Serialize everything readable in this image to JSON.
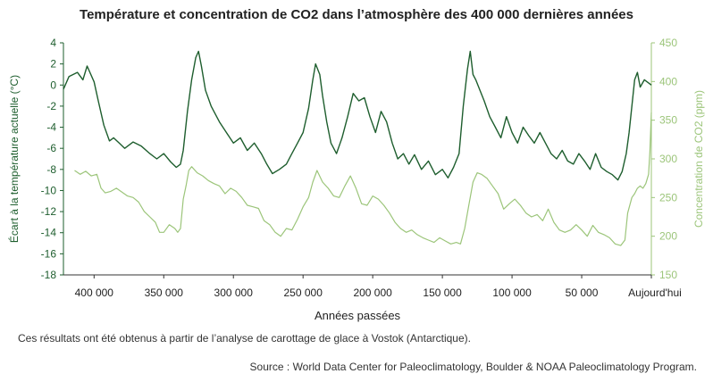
{
  "chart_data": {
    "type": "line",
    "title": "Température et concentration de CO2 dans l’atmosphère des 400 000 dernières années",
    "xlabel": "Années passées",
    "ylabel_left": "Écart à la température actuelle (°C)",
    "ylabel_right": "Concentration de CO2 (ppm)",
    "xlim": [
      422000,
      0
    ],
    "ylim_left": [
      -18,
      4
    ],
    "ylim_right": [
      150,
      450
    ],
    "x_ticks": [
      {
        "value": 400000,
        "label": "400 000"
      },
      {
        "value": 350000,
        "label": "350 000"
      },
      {
        "value": 300000,
        "label": "300 000"
      },
      {
        "value": 250000,
        "label": "250 000"
      },
      {
        "value": 200000,
        "label": "200 000"
      },
      {
        "value": 150000,
        "label": "150 000"
      },
      {
        "value": 100000,
        "label": "100 000"
      },
      {
        "value": 50000,
        "label": "50 000"
      },
      {
        "value": 0,
        "label": "Aujourd'hui"
      }
    ],
    "y_left_ticks": [
      4,
      2,
      0,
      -2,
      -4,
      -6,
      -8,
      -10,
      -12,
      -14,
      -16,
      -18
    ],
    "y_right_ticks": [
      450,
      400,
      350,
      300,
      250,
      200,
      150
    ],
    "series": [
      {
        "name": "Température",
        "axis": "left",
        "color": "#1e5e2e",
        "x": [
          422000,
          418000,
          412000,
          408000,
          405000,
          400000,
          397000,
          393000,
          389000,
          386000,
          382000,
          378000,
          372000,
          366000,
          360000,
          355000,
          350000,
          345000,
          341000,
          338000,
          336000,
          333000,
          330000,
          327000,
          325000,
          323000,
          320000,
          316000,
          310000,
          305000,
          300000,
          295000,
          290000,
          285000,
          280000,
          276000,
          272000,
          267000,
          262000,
          258000,
          254000,
          250000,
          246000,
          243000,
          241000,
          238000,
          236000,
          233000,
          230000,
          226000,
          222000,
          218000,
          214000,
          210000,
          206000,
          202000,
          198000,
          194000,
          190000,
          186000,
          182000,
          178000,
          174000,
          170000,
          165000,
          160000,
          155000,
          150000,
          146000,
          142000,
          138000,
          135000,
          132000,
          130000,
          128000,
          126000,
          123000,
          120000,
          116000,
          112000,
          108000,
          104000,
          100000,
          96000,
          92000,
          88000,
          84000,
          80000,
          76000,
          72000,
          68000,
          64000,
          60000,
          56000,
          52000,
          48000,
          44000,
          40000,
          36000,
          32000,
          28000,
          24000,
          21000,
          18000,
          16000,
          14000,
          12000,
          10000,
          8000,
          5000,
          2000,
          0
        ],
        "values": [
          -0.4,
          0.8,
          1.2,
          0.5,
          1.8,
          0.3,
          -1.5,
          -3.8,
          -5.3,
          -5.0,
          -5.5,
          -6.0,
          -5.4,
          -5.8,
          -6.5,
          -7.0,
          -6.5,
          -7.3,
          -7.8,
          -7.5,
          -6.2,
          -2.5,
          0.5,
          2.6,
          3.2,
          1.8,
          -0.5,
          -2.0,
          -3.5,
          -4.5,
          -5.5,
          -5.0,
          -6.2,
          -5.5,
          -6.5,
          -7.5,
          -8.4,
          -8.0,
          -7.5,
          -6.5,
          -5.5,
          -4.5,
          -2.2,
          0.5,
          2.0,
          1.0,
          -1.0,
          -3.5,
          -5.5,
          -6.5,
          -5.0,
          -3.0,
          -0.8,
          -1.5,
          -1.2,
          -3.0,
          -4.5,
          -2.5,
          -3.5,
          -5.5,
          -7.0,
          -6.5,
          -7.5,
          -6.6,
          -8.0,
          -7.2,
          -8.5,
          -8.0,
          -8.8,
          -7.8,
          -6.5,
          -2.0,
          1.5,
          3.2,
          1.0,
          0.5,
          -0.5,
          -1.5,
          -3.0,
          -4.0,
          -5.0,
          -3.0,
          -4.5,
          -5.5,
          -4.0,
          -4.8,
          -5.5,
          -4.5,
          -5.5,
          -6.5,
          -7.0,
          -6.2,
          -7.2,
          -7.5,
          -6.5,
          -7.2,
          -8.0,
          -6.5,
          -7.8,
          -8.2,
          -8.5,
          -9.0,
          -8.2,
          -6.5,
          -4.5,
          -2.0,
          0.5,
          1.2,
          -0.2,
          0.5,
          0.2,
          0.0
        ]
      },
      {
        "name": "CO2",
        "axis": "right",
        "color": "#9cc57a",
        "x": [
          414000,
          410000,
          406000,
          402000,
          398000,
          395000,
          392000,
          388000,
          384000,
          380000,
          376000,
          372000,
          368000,
          364000,
          360000,
          356000,
          353000,
          350000,
          346000,
          342000,
          340000,
          338000,
          336000,
          334000,
          332000,
          330000,
          326000,
          322000,
          318000,
          314000,
          310000,
          306000,
          302000,
          298000,
          294000,
          290000,
          286000,
          282000,
          278000,
          274000,
          270000,
          266000,
          262000,
          258000,
          254000,
          250000,
          246000,
          243000,
          240000,
          236000,
          232000,
          228000,
          224000,
          220000,
          216000,
          212000,
          208000,
          204000,
          200000,
          196000,
          192000,
          188000,
          184000,
          180000,
          176000,
          172000,
          168000,
          164000,
          160000,
          156000,
          152000,
          148000,
          144000,
          140000,
          137000,
          134000,
          131000,
          128000,
          125000,
          122000,
          118000,
          114000,
          110000,
          106000,
          102000,
          98000,
          94000,
          90000,
          86000,
          82000,
          78000,
          74000,
          70000,
          66000,
          62000,
          58000,
          54000,
          50000,
          46000,
          42000,
          38000,
          34000,
          30000,
          26000,
          22000,
          19000,
          17000,
          14000,
          12000,
          10000,
          8000,
          6000,
          4000,
          2000,
          1000,
          0
        ],
        "values": [
          285,
          280,
          284,
          278,
          280,
          262,
          256,
          258,
          262,
          257,
          252,
          250,
          244,
          232,
          225,
          218,
          205,
          205,
          215,
          210,
          205,
          210,
          248,
          265,
          285,
          290,
          282,
          278,
          272,
          268,
          265,
          255,
          262,
          258,
          250,
          240,
          238,
          236,
          220,
          215,
          205,
          200,
          210,
          208,
          222,
          238,
          250,
          270,
          285,
          270,
          262,
          252,
          250,
          265,
          278,
          262,
          242,
          240,
          252,
          248,
          240,
          230,
          218,
          210,
          205,
          208,
          202,
          198,
          195,
          192,
          198,
          194,
          190,
          192,
          190,
          210,
          240,
          270,
          282,
          280,
          275,
          265,
          255,
          235,
          242,
          248,
          240,
          230,
          225,
          228,
          220,
          235,
          218,
          208,
          205,
          208,
          215,
          208,
          200,
          214,
          205,
          202,
          198,
          190,
          188,
          195,
          230,
          250,
          255,
          262,
          265,
          262,
          268,
          280,
          310,
          360
        ]
      }
    ]
  },
  "notes": {
    "caption": "Ces résultats ont été obtenus à partir de l’analyse de carottage de glace à Vostok (Antarctique).",
    "source": "Source : World Data Center for Paleoclimatology, Boulder & NOAA Paleoclimatology Program."
  },
  "colors": {
    "temperature": "#1e5e2e",
    "co2": "#9cc57a",
    "axis": "#333333"
  }
}
